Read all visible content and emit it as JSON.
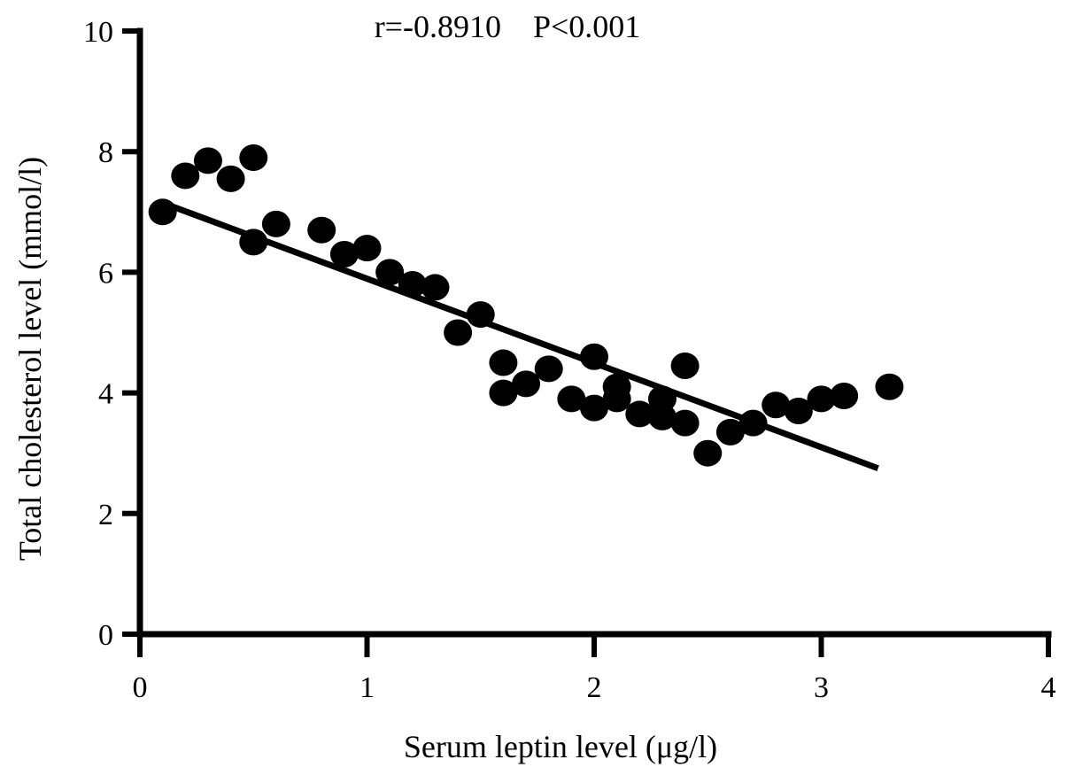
{
  "chart_data": {
    "type": "scatter",
    "xlabel": "Serum leptin level (μg/l)",
    "ylabel": "Total cholesterol level (mmol/l)",
    "xlim": [
      0,
      4
    ],
    "ylim": [
      0,
      10
    ],
    "x_ticks": [
      0,
      1,
      2,
      3,
      4
    ],
    "y_ticks": [
      0,
      2,
      4,
      6,
      8,
      10
    ],
    "x_tick_labels": [
      "0",
      "1",
      "2",
      "3",
      "4"
    ],
    "y_tick_labels": [
      "0",
      "2",
      "4",
      "6",
      "8",
      "10"
    ],
    "annotation": "r=-0.8910    P<0.001",
    "grid": false,
    "legend": "none",
    "marker_color": "#000000",
    "points": [
      {
        "x": 0.1,
        "y": 7.0
      },
      {
        "x": 0.2,
        "y": 7.6
      },
      {
        "x": 0.3,
        "y": 7.85
      },
      {
        "x": 0.4,
        "y": 7.55
      },
      {
        "x": 0.5,
        "y": 7.9
      },
      {
        "x": 0.5,
        "y": 6.5
      },
      {
        "x": 0.6,
        "y": 6.8
      },
      {
        "x": 0.8,
        "y": 6.7
      },
      {
        "x": 0.9,
        "y": 6.3
      },
      {
        "x": 1.0,
        "y": 6.4
      },
      {
        "x": 1.1,
        "y": 6.0
      },
      {
        "x": 1.2,
        "y": 5.8
      },
      {
        "x": 1.3,
        "y": 5.75
      },
      {
        "x": 1.4,
        "y": 5.0
      },
      {
        "x": 1.5,
        "y": 5.3
      },
      {
        "x": 1.6,
        "y": 4.5
      },
      {
        "x": 1.6,
        "y": 4.0
      },
      {
        "x": 1.7,
        "y": 4.15
      },
      {
        "x": 1.8,
        "y": 4.4
      },
      {
        "x": 1.9,
        "y": 3.9
      },
      {
        "x": 2.0,
        "y": 4.6
      },
      {
        "x": 2.0,
        "y": 3.75
      },
      {
        "x": 2.1,
        "y": 4.1
      },
      {
        "x": 2.1,
        "y": 3.9
      },
      {
        "x": 2.2,
        "y": 3.65
      },
      {
        "x": 2.3,
        "y": 3.9
      },
      {
        "x": 2.3,
        "y": 3.6
      },
      {
        "x": 2.4,
        "y": 4.45
      },
      {
        "x": 2.4,
        "y": 3.5
      },
      {
        "x": 2.5,
        "y": 3.0
      },
      {
        "x": 2.6,
        "y": 3.35
      },
      {
        "x": 2.7,
        "y": 3.5
      },
      {
        "x": 2.8,
        "y": 3.8
      },
      {
        "x": 2.9,
        "y": 3.7
      },
      {
        "x": 3.0,
        "y": 3.9
      },
      {
        "x": 3.1,
        "y": 3.95
      },
      {
        "x": 3.3,
        "y": 4.1
      }
    ],
    "trendline": {
      "x": [
        0.1,
        3.25
      ],
      "y": [
        7.15,
        2.75
      ]
    }
  }
}
